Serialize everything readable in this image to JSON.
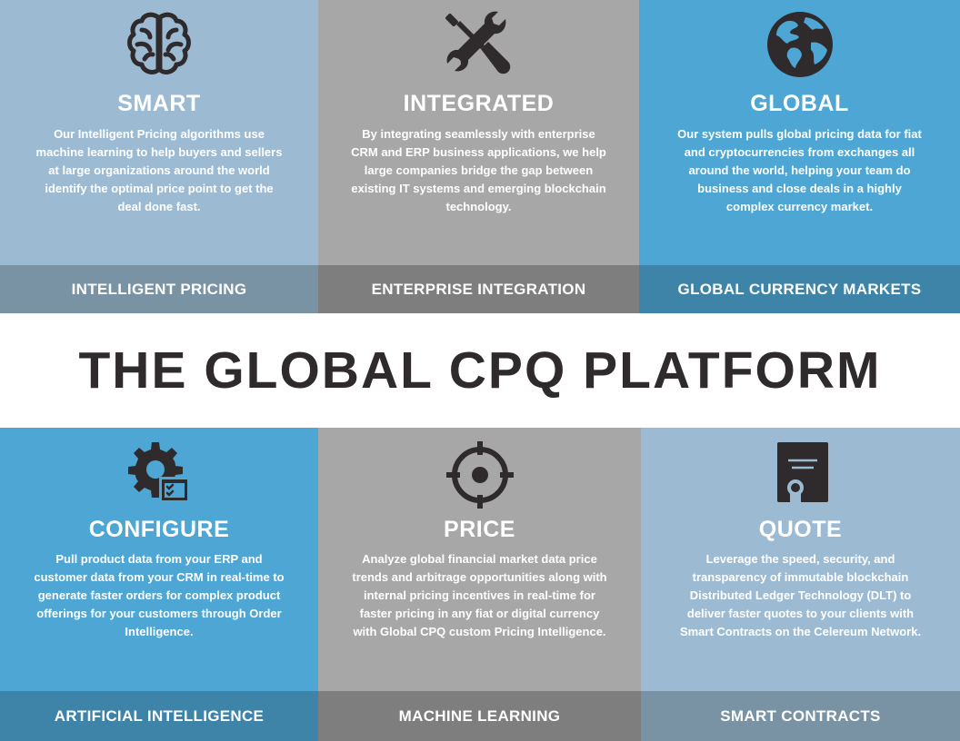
{
  "headline": "THE GLOBAL CPQ PLATFORM",
  "colors": {
    "light_blue": "#9cbbd3",
    "gray": "#a7a7a7",
    "blue": "#4da6d3",
    "dark_text": "#2f2b2c",
    "icon": "#2f2b2c"
  },
  "top_row": [
    {
      "icon": "brain-icon",
      "title": "SMART",
      "body": "Our Intelligent Pricing algorithms use machine learning to help buyers and sellers at large organizations around the world identify the optimal price point to get the deal done fast.",
      "bar_label": "INTELLIGENT PRICING"
    },
    {
      "icon": "wrench-screwdriver-icon",
      "title": "INTEGRATED",
      "body": "By integrating seamlessly with enterprise CRM and ERP business applications, we help large companies bridge the gap between existing IT systems and emerging blockchain technology.",
      "bar_label": "ENTERPRISE INTEGRATION"
    },
    {
      "icon": "globe-icon",
      "title": "GLOBAL",
      "body": "Our system pulls global pricing data for fiat and cryptocurrencies from exchanges all around the world, helping your team do business and close deals in a highly complex currency market.",
      "bar_label": "GLOBAL CURRENCY MARKETS"
    }
  ],
  "bottom_row": [
    {
      "icon": "gear-checklist-icon",
      "title": "CONFIGURE",
      "body": "Pull product data from your ERP and customer data from your CRM in real-time to generate faster orders for complex product offerings for your customers through Order Intelligence.",
      "bar_label": "ARTIFICIAL INTELLIGENCE"
    },
    {
      "icon": "crosshair-icon",
      "title": "PRICE",
      "body": "Analyze global financial market data price trends and arbitrage opportunities along with internal pricing incentives in real-time for faster pricing in any fiat or digital currency with Global CPQ custom Pricing Intelligence.",
      "bar_label": "MACHINE LEARNING"
    },
    {
      "icon": "certificate-document-icon",
      "title": "QUOTE",
      "body": "Leverage the speed, security, and transparency of immutable blockchain Distributed Ledger Technology (DLT) to deliver faster quotes to your clients with Smart Contracts on the Celereum Network.",
      "bar_label": "SMART CONTRACTS"
    }
  ]
}
